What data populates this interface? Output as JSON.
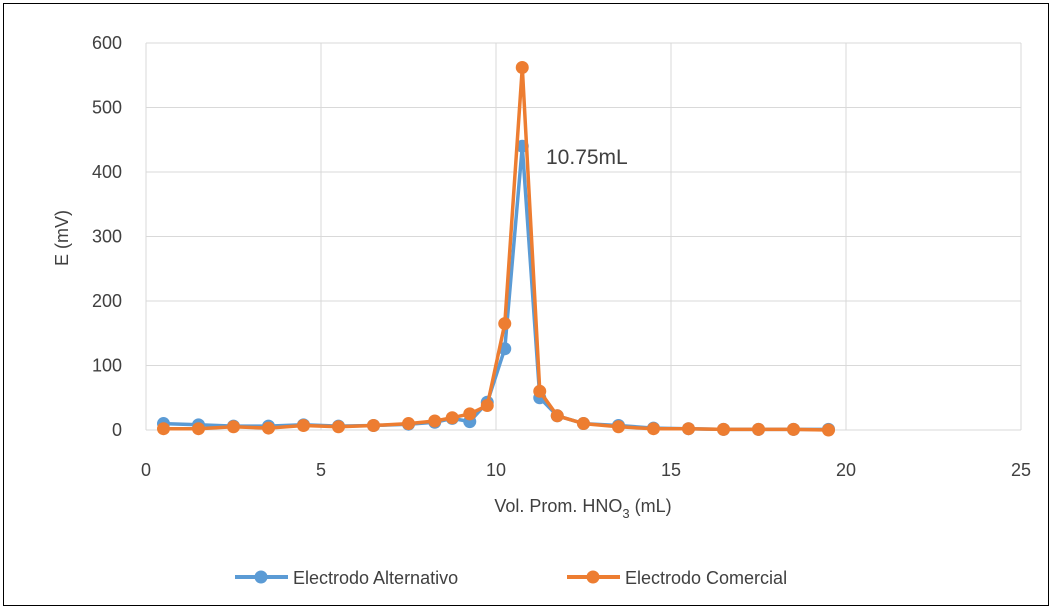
{
  "chart_data": {
    "type": "line",
    "xlabel": "Vol. Prom. HNO",
    "xlabel_sub": "3",
    "xlabel_suffix": " (mL)",
    "ylabel": "E (mV)",
    "xlim": [
      0,
      25
    ],
    "ylim": [
      0,
      600
    ],
    "xticks": [
      0,
      5,
      10,
      15,
      20,
      25
    ],
    "yticks": [
      0,
      100,
      200,
      300,
      400,
      500,
      600
    ],
    "grid": true,
    "legend_position": "bottom",
    "annotation": {
      "text": "10.75mL",
      "x": 10.75,
      "y": 440
    },
    "series": [
      {
        "name": "Electrodo Alternativo",
        "color": "#5B9BD5",
        "x": [
          0.5,
          1.5,
          2.5,
          3.5,
          4.5,
          5.5,
          6.5,
          7.5,
          8.25,
          8.75,
          9.25,
          9.75,
          10.25,
          10.75,
          11.25,
          11.75,
          12.5,
          13.5,
          14.5,
          15.5,
          16.5,
          17.5,
          18.5,
          19.5
        ],
        "y": [
          10,
          8,
          6,
          6,
          8,
          6,
          7,
          9,
          12,
          18,
          13,
          43,
          126,
          440,
          50,
          22,
          10,
          7,
          3,
          2,
          1,
          1,
          1,
          1
        ]
      },
      {
        "name": "Electrodo Comercial",
        "color": "#ED7D31",
        "x": [
          0.5,
          1.5,
          2.5,
          3.5,
          4.5,
          5.5,
          6.5,
          7.5,
          8.25,
          8.75,
          9.25,
          9.75,
          10.25,
          10.75,
          11.25,
          11.75,
          12.5,
          13.5,
          14.5,
          15.5,
          16.5,
          17.5,
          18.5,
          19.5
        ],
        "y": [
          2,
          2,
          5,
          3,
          7,
          5,
          7,
          10,
          14,
          19,
          25,
          38,
          165,
          562,
          60,
          22,
          10,
          5,
          2,
          2,
          1,
          1,
          1,
          0
        ]
      }
    ]
  }
}
